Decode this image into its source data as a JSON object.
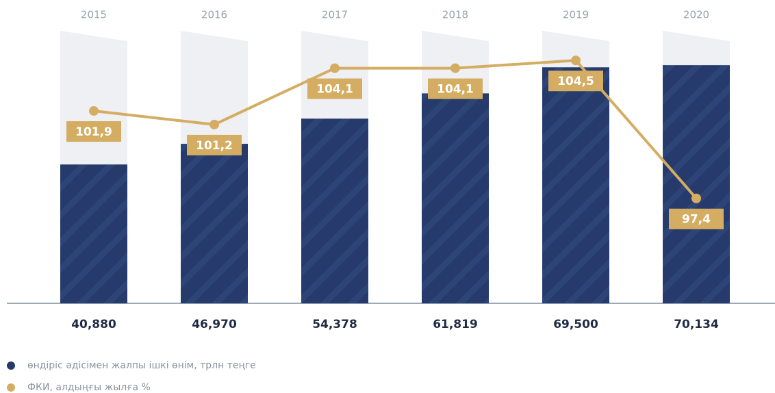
{
  "chart_data": {
    "type": "bar_line",
    "categories": [
      "2015",
      "2016",
      "2017",
      "2018",
      "2019",
      "2020"
    ],
    "series": [
      {
        "name": "өндіріс әдісімен жалпы ішкі өнім, трлн теңге",
        "color": "#263a6b",
        "type": "bar",
        "values": [
          40.88,
          46.97,
          54.378,
          61.819,
          69.5,
          70.134
        ],
        "value_labels": [
          "40,880",
          "46,970",
          "54,378",
          "61,819",
          "69,500",
          "70,134"
        ]
      },
      {
        "name": "ФКИ, алдыңғы жылға %",
        "color": "#d4ad62",
        "type": "line",
        "axis": "y2",
        "values": [
          101.9,
          101.2,
          104.1,
          104.1,
          104.5,
          97.4
        ],
        "value_labels": [
          "101,9",
          "101,2",
          "104,1",
          "104,1",
          "104,5",
          "97,4"
        ]
      }
    ],
    "ylim": [
      0,
      81.25
    ],
    "y2lim": [
      92,
      106.2
    ]
  }
}
